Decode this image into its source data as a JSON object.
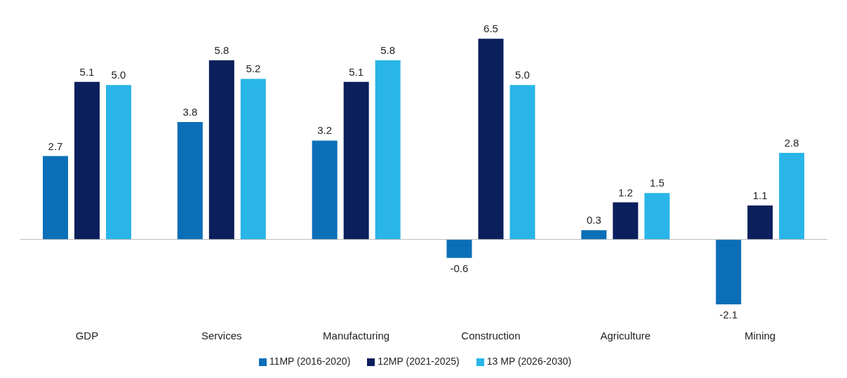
{
  "chart_data": {
    "type": "bar",
    "categories": [
      "GDP",
      "Services",
      "Manufacturing",
      "Construction",
      "Agriculture",
      "Mining"
    ],
    "series": [
      {
        "name": "11MP (2016-2020)",
        "color": "#0b6fb8",
        "values": [
          2.7,
          3.8,
          3.2,
          -0.6,
          0.3,
          -2.1
        ],
        "value_labels": [
          "2.7",
          "3.8",
          "3.2",
          "-0.6",
          "0.3",
          "-2.1"
        ]
      },
      {
        "name": "12MP (2021-2025)",
        "color": "#0a1f5c",
        "values": [
          5.1,
          5.8,
          5.1,
          6.5,
          1.2,
          1.1
        ],
        "value_labels": [
          "5.1",
          "5.8",
          "5.1",
          "6.5",
          "1.2",
          "1.1"
        ]
      },
      {
        "name": "13 MP (2026-2030)",
        "color": "#29b5e8",
        "values": [
          5.0,
          5.2,
          5.8,
          5.0,
          1.5,
          2.8
        ],
        "value_labels": [
          "5.0",
          "5.2",
          "5.8",
          "5.0",
          "1.5",
          "2.8"
        ]
      }
    ],
    "grid": false,
    "legend": "bottom"
  }
}
